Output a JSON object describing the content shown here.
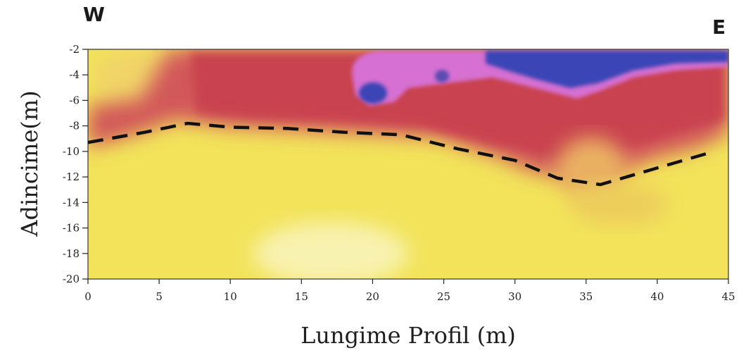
{
  "direction_labels": {
    "west": "W",
    "east": "E"
  },
  "chart_data": {
    "type": "heatmap",
    "title": "",
    "xlabel": "Lungime Profil (m)",
    "ylabel": "Adincime(m)",
    "xlim": [
      0,
      45
    ],
    "ylim": [
      -20,
      -2
    ],
    "x_ticks": [
      0,
      5,
      10,
      15,
      20,
      25,
      30,
      35,
      40,
      45
    ],
    "y_ticks": [
      -2,
      -4,
      -6,
      -8,
      -10,
      -12,
      -14,
      -16,
      -18,
      -20
    ],
    "grid": false,
    "legend": "none",
    "colors": {
      "yellow": "#f3e64a",
      "light_yellow": "#f7f0a0",
      "red": "#cc4a52",
      "orange": "#dd8c4e",
      "magenta": "#d36ad8",
      "blue": "#3a45b4"
    },
    "interface_line": {
      "style": "dashed",
      "color": "#111111",
      "x": [
        0,
        4,
        7,
        10,
        14,
        18,
        22,
        26,
        30,
        33,
        36,
        40,
        44
      ],
      "y": [
        -9.3,
        -8.5,
        -7.8,
        -8.1,
        -8.2,
        -8.5,
        -8.7,
        -9.8,
        -10.7,
        -12.1,
        -12.6,
        -11.3,
        -10.0
      ]
    }
  }
}
